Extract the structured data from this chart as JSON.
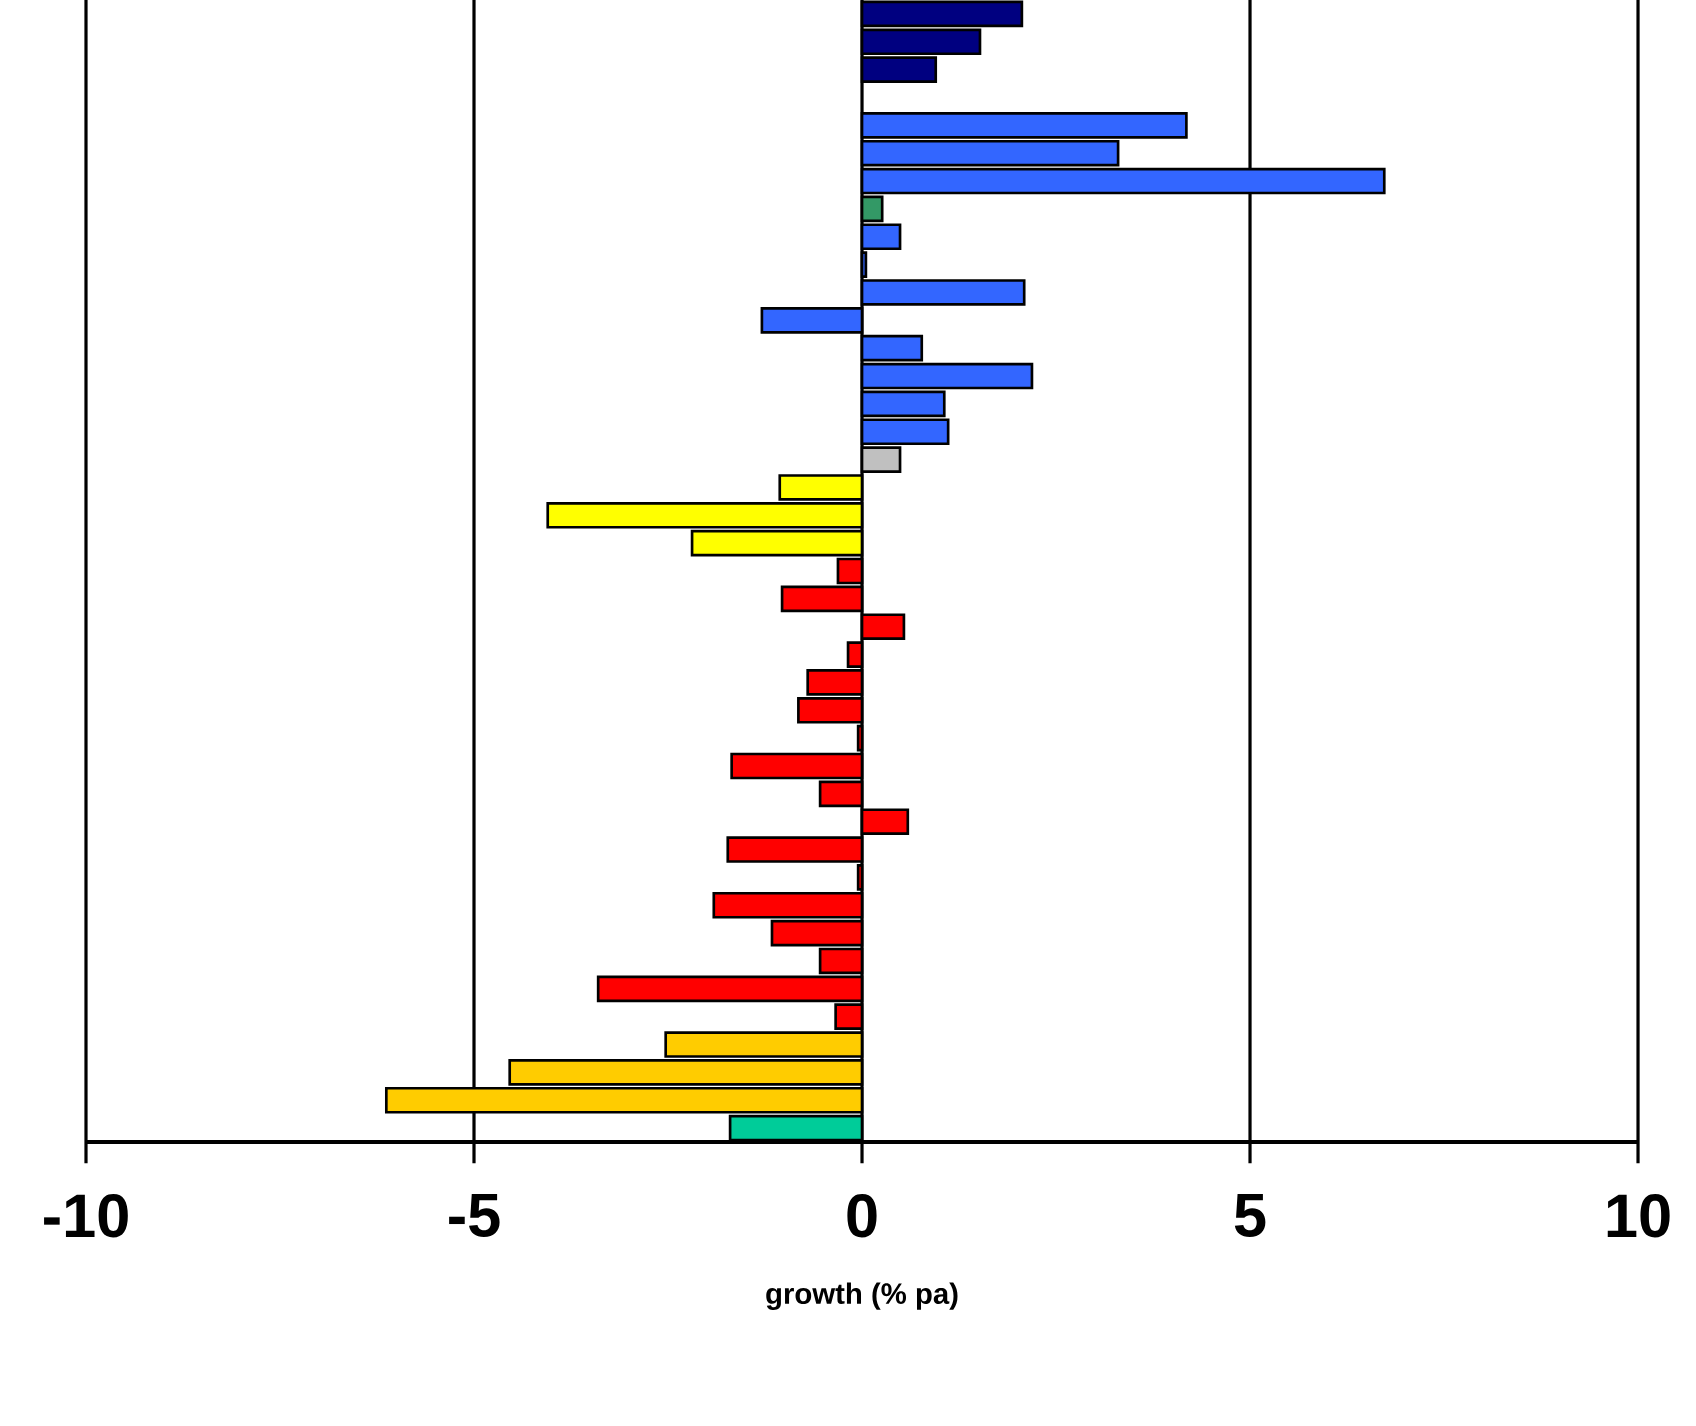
{
  "chart_data": {
    "type": "bar",
    "orientation": "horizontal",
    "xlabel": "growth (% pa)",
    "categories": [
      null,
      null,
      null,
      null,
      null,
      null,
      null,
      null,
      null,
      null,
      null,
      null,
      null,
      null,
      null,
      null,
      null,
      null,
      null,
      null,
      null,
      null,
      null,
      null,
      null,
      null,
      null,
      null,
      null,
      null,
      null,
      null,
      null,
      null,
      null,
      null,
      null,
      null,
      null,
      null,
      null
    ],
    "values": [
      2.06,
      1.52,
      0.95,
      null,
      4.18,
      3.3,
      6.73,
      0.26,
      0.49,
      0.05,
      2.09,
      -1.29,
      0.77,
      2.19,
      1.06,
      1.11,
      0.49,
      -1.06,
      -4.05,
      -2.19,
      -0.31,
      -1.03,
      0.54,
      -0.18,
      -0.7,
      -0.82,
      -0.05,
      -1.68,
      -0.54,
      0.59,
      -1.73,
      -0.05,
      -1.91,
      -1.16,
      -0.54,
      -3.4,
      -0.34,
      -2.53,
      -4.54,
      -6.13,
      -1.7
    ],
    "colors": [
      "#000080",
      "#000080",
      "#000080",
      "#000080",
      "#3366ff",
      "#3366ff",
      "#3366ff",
      "#339966",
      "#3366ff",
      "#3366ff",
      "#3366ff",
      "#3366ff",
      "#3366ff",
      "#3366ff",
      "#3366ff",
      "#3366ff",
      "#c0c0c0",
      "#ffff00",
      "#ffff00",
      "#ffff00",
      "#ff0000",
      "#ff0000",
      "#ff0000",
      "#ff0000",
      "#ff0000",
      "#ff0000",
      "#ff0000",
      "#ff0000",
      "#ff0000",
      "#ff0000",
      "#ff0000",
      "#ff0000",
      "#ff0000",
      "#ff0000",
      "#ff0000",
      "#ff0000",
      "#ff0000",
      "#ffcc00",
      "#ffcc00",
      "#ffcc00",
      "#00cc99"
    ],
    "xlim": [
      -10,
      10
    ],
    "xticks": [
      -10,
      -5,
      0,
      5,
      10
    ],
    "grid": "x",
    "tick_labels": "x"
  }
}
